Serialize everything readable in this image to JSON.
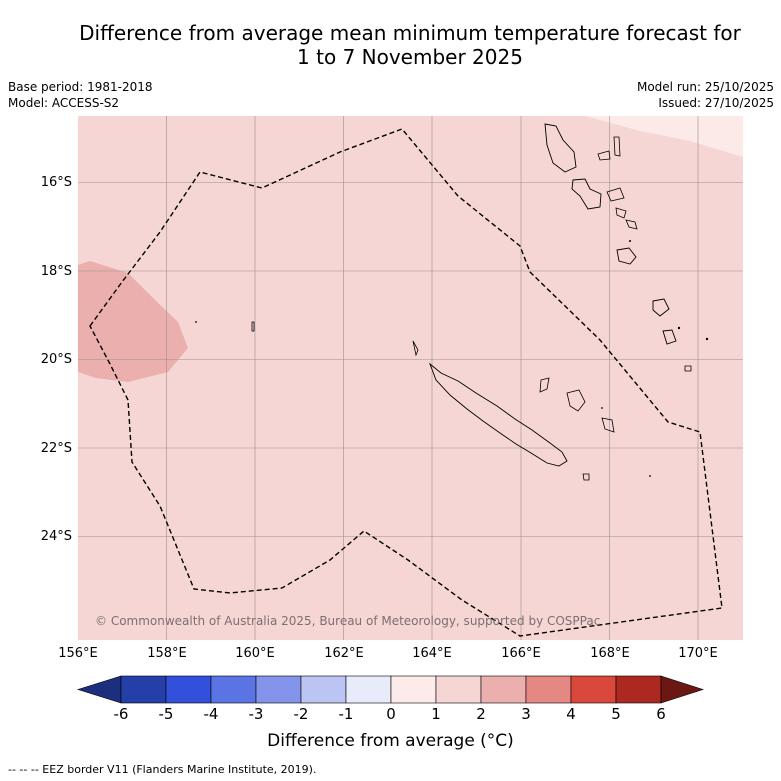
{
  "title": {
    "line1": "Difference from average mean minimum temperature forecast for",
    "line2": "1 to 7 November 2025"
  },
  "meta": {
    "base_period": "Base period: 1981-2018",
    "model": "Model: ACCESS-S2",
    "model_run": "Model run: 25/10/2025",
    "issued": "Issued: 27/10/2025"
  },
  "map": {
    "lat_labels": [
      "16°S",
      "18°S",
      "20°S",
      "22°S",
      "24°S"
    ],
    "lon_labels": [
      "156°E",
      "158°E",
      "160°E",
      "162°E",
      "164°E",
      "166°E",
      "168°E",
      "170°E"
    ],
    "copyright": "© Commonwealth of Australia 2025, Bureau of Meteorology, supported by COSPPac",
    "fill_main": "#f5d6d5",
    "fill_warm": "#ebb0ae",
    "fill_cool_corner": "#fceae8"
  },
  "colorbar": {
    "title": "Difference from average (°C)",
    "ticks": [
      "-6",
      "-5",
      "-4",
      "-3",
      "-2",
      "-1",
      "0",
      "1",
      "2",
      "3",
      "4",
      "5",
      "6"
    ],
    "colors": [
      "#1c2e7e",
      "#253fa8",
      "#3350dd",
      "#5a74e4",
      "#8494ea",
      "#bcc4f3",
      "#e8ebfa",
      "#fdebea",
      "#f5d6d5",
      "#ebb0ae",
      "#e48883",
      "#d9483b",
      "#ac2922",
      "#6b1814"
    ]
  },
  "footer": {
    "legend": "-- -- -- EEZ border V11 (Flanders Marine Institute, 2019)."
  }
}
